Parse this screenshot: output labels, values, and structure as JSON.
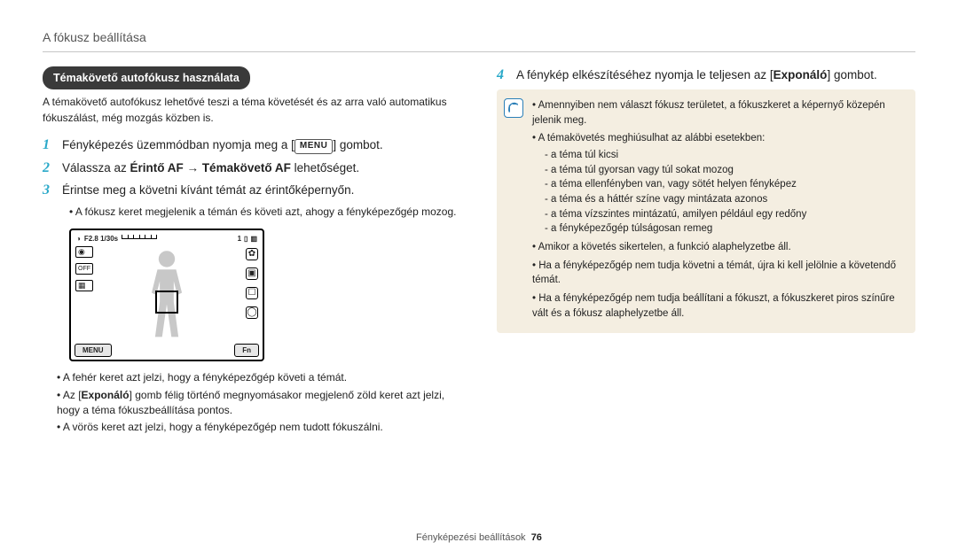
{
  "header": {
    "title": "A fókusz beállítása"
  },
  "left": {
    "pill": "Témakövető autofókusz használata",
    "intro": "A témakövető autofókusz lehetővé teszi a téma követését és az arra való automatikus fókuszálást, még mozgás közben is.",
    "steps": [
      {
        "n": "1",
        "pre": "Fényképezés üzemmódban nyomja meg a [",
        "chip": "MENU",
        "post": "] gombot."
      },
      {
        "n": "2",
        "html": "Válassza az <strong>Érintő AF</strong> → <strong>Témakövető AF</strong> lehetőséget."
      },
      {
        "n": "3",
        "text": "Érintse meg a követni kívánt témát az érintőképernyőn."
      }
    ],
    "sub3": "A fókusz keret megjelenik a témán és követi azt, ahogy a fényképezőgép mozog.",
    "lcd": {
      "top_left": "F2.8 1/30s",
      "top_right_count": "1",
      "btn_left": "MENU",
      "btn_right": "Fn",
      "left_icon": "◉",
      "right_icons": [
        "✿",
        "▣",
        "☐",
        "◯"
      ]
    },
    "after_bullets": [
      "A fehér keret azt jelzi, hogy a fényképezőgép követi a témát.",
      "Az [<strong>Exponáló</strong>] gomb félig történő megnyomásakor megjelenő zöld keret azt jelzi, hogy a téma fókuszbeállítása pontos.",
      "A vörös keret azt jelzi, hogy a fényképezőgép nem tudott fókuszálni."
    ]
  },
  "right": {
    "step4": {
      "n": "4",
      "html": "A fénykép elkészítéséhez nyomja le teljesen az [<strong>Exponáló</strong>] gombot."
    },
    "note": {
      "items": [
        {
          "t": "Amennyiben nem választ fókusz területet, a fókuszkeret a képernyő közepén jelenik meg."
        },
        {
          "t": "A témakövetés meghiúsulhat az alábbi esetekben:",
          "sub": [
            "a téma túl kicsi",
            "a téma túl gyorsan vagy túl sokat mozog",
            "a téma ellenfényben van, vagy sötét helyen fényképez",
            "a téma és a háttér színe vagy mintázata azonos",
            "a téma vízszintes mintázatú, amilyen például egy redőny",
            "a fényképezőgép túlságosan remeg"
          ]
        },
        {
          "t": "Amikor a követés sikertelen, a funkció alaphelyzetbe áll."
        },
        {
          "t": "Ha a fényképezőgép nem tudja követni a témát, újra ki kell jelölnie a követendő témát."
        },
        {
          "t": "Ha a fényképezőgép nem tudja beállítani a fókuszt, a fókuszkeret piros színűre vált és a fókusz alaphelyzetbe áll."
        }
      ]
    }
  },
  "footer": {
    "label": "Fényképezési beállítások",
    "page": "76"
  }
}
